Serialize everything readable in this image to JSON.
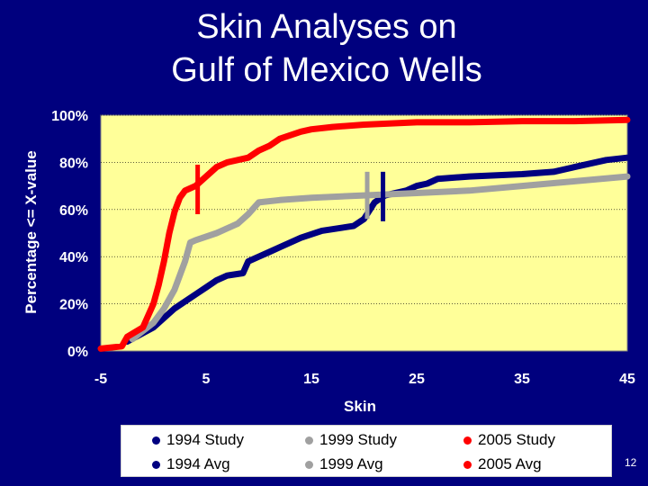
{
  "title": {
    "line1": "Skin Analyses on",
    "line2": "Gulf of Mexico Wells"
  },
  "slide_number": "12",
  "colors": {
    "background": "#00007e",
    "plot_area": "#ffff99",
    "series_1994": "#000080",
    "series_1999": "#a0a0a0",
    "series_2005": "#ff0000"
  },
  "chart_data": {
    "type": "line",
    "xlabel": "Skin",
    "ylabel": "Percentage <= X-value",
    "xlim": [
      -5,
      45
    ],
    "ylim": [
      0,
      100
    ],
    "x_ticks": [
      "-5",
      "5",
      "15",
      "25",
      "35",
      "45"
    ],
    "y_ticks": [
      "0%",
      "20%",
      "40%",
      "60%",
      "80%",
      "100%"
    ],
    "grid": "horizontal",
    "legend_position": "bottom",
    "legend": [
      "1994 Study",
      "1999 Study",
      "2005 Study",
      "1994 Avg",
      "1999 Avg",
      "2005 Avg"
    ],
    "series": [
      {
        "name": "1994 Study",
        "color": "#000080",
        "points": [
          [
            -2.5,
            4
          ],
          [
            0,
            10
          ],
          [
            2,
            18
          ],
          [
            4,
            24
          ],
          [
            5,
            27
          ],
          [
            6,
            30
          ],
          [
            7,
            32
          ],
          [
            8.5,
            33
          ],
          [
            9,
            38
          ],
          [
            10,
            40
          ],
          [
            11,
            42
          ],
          [
            12,
            44
          ],
          [
            14,
            48
          ],
          [
            16,
            51
          ],
          [
            19,
            53
          ],
          [
            20,
            56
          ],
          [
            21,
            63
          ],
          [
            22,
            66
          ],
          [
            24,
            68
          ],
          [
            25,
            70
          ],
          [
            26,
            71
          ],
          [
            27,
            73
          ],
          [
            30,
            74
          ],
          [
            35,
            75
          ],
          [
            38,
            76
          ],
          [
            40,
            78
          ],
          [
            43,
            81
          ],
          [
            45,
            82
          ]
        ]
      },
      {
        "name": "1999 Study",
        "color": "#a0a0a0",
        "points": [
          [
            -2,
            5
          ],
          [
            0,
            12
          ],
          [
            1,
            18
          ],
          [
            2,
            26
          ],
          [
            3,
            38
          ],
          [
            3.5,
            46
          ],
          [
            4,
            47
          ],
          [
            6,
            50
          ],
          [
            8,
            54
          ],
          [
            9,
            58
          ],
          [
            10,
            63
          ],
          [
            12,
            64
          ],
          [
            15,
            65
          ],
          [
            20,
            66
          ],
          [
            25,
            67
          ],
          [
            30,
            68
          ],
          [
            35,
            70
          ],
          [
            40,
            72
          ],
          [
            45,
            74
          ]
        ]
      },
      {
        "name": "2005 Study",
        "color": "#ff0000",
        "points": [
          [
            -5,
            1
          ],
          [
            -3,
            2
          ],
          [
            -2.5,
            6
          ],
          [
            -1,
            10
          ],
          [
            0,
            20
          ],
          [
            0.5,
            28
          ],
          [
            1,
            38
          ],
          [
            1.5,
            50
          ],
          [
            2,
            59
          ],
          [
            2.5,
            65
          ],
          [
            3,
            68
          ],
          [
            4,
            70
          ],
          [
            5,
            74
          ],
          [
            6,
            78
          ],
          [
            7,
            80
          ],
          [
            9,
            82
          ],
          [
            10,
            85
          ],
          [
            11,
            87
          ],
          [
            12,
            90
          ],
          [
            14,
            93
          ],
          [
            15,
            94
          ],
          [
            17,
            95
          ],
          [
            20,
            96
          ],
          [
            25,
            97
          ],
          [
            30,
            97
          ],
          [
            35,
            97.5
          ],
          [
            40,
            97.5
          ],
          [
            45,
            98
          ]
        ]
      }
    ],
    "averages": [
      {
        "name": "1994 Avg",
        "color": "#000080",
        "x": 21.8,
        "y_range": [
          55,
          76
        ]
      },
      {
        "name": "1999 Avg",
        "color": "#a0a0a0",
        "x": 20.3,
        "y_range": [
          56,
          76
        ]
      },
      {
        "name": "2005 Avg",
        "color": "#ff0000",
        "x": 4.2,
        "y_range": [
          58,
          79
        ]
      }
    ]
  }
}
